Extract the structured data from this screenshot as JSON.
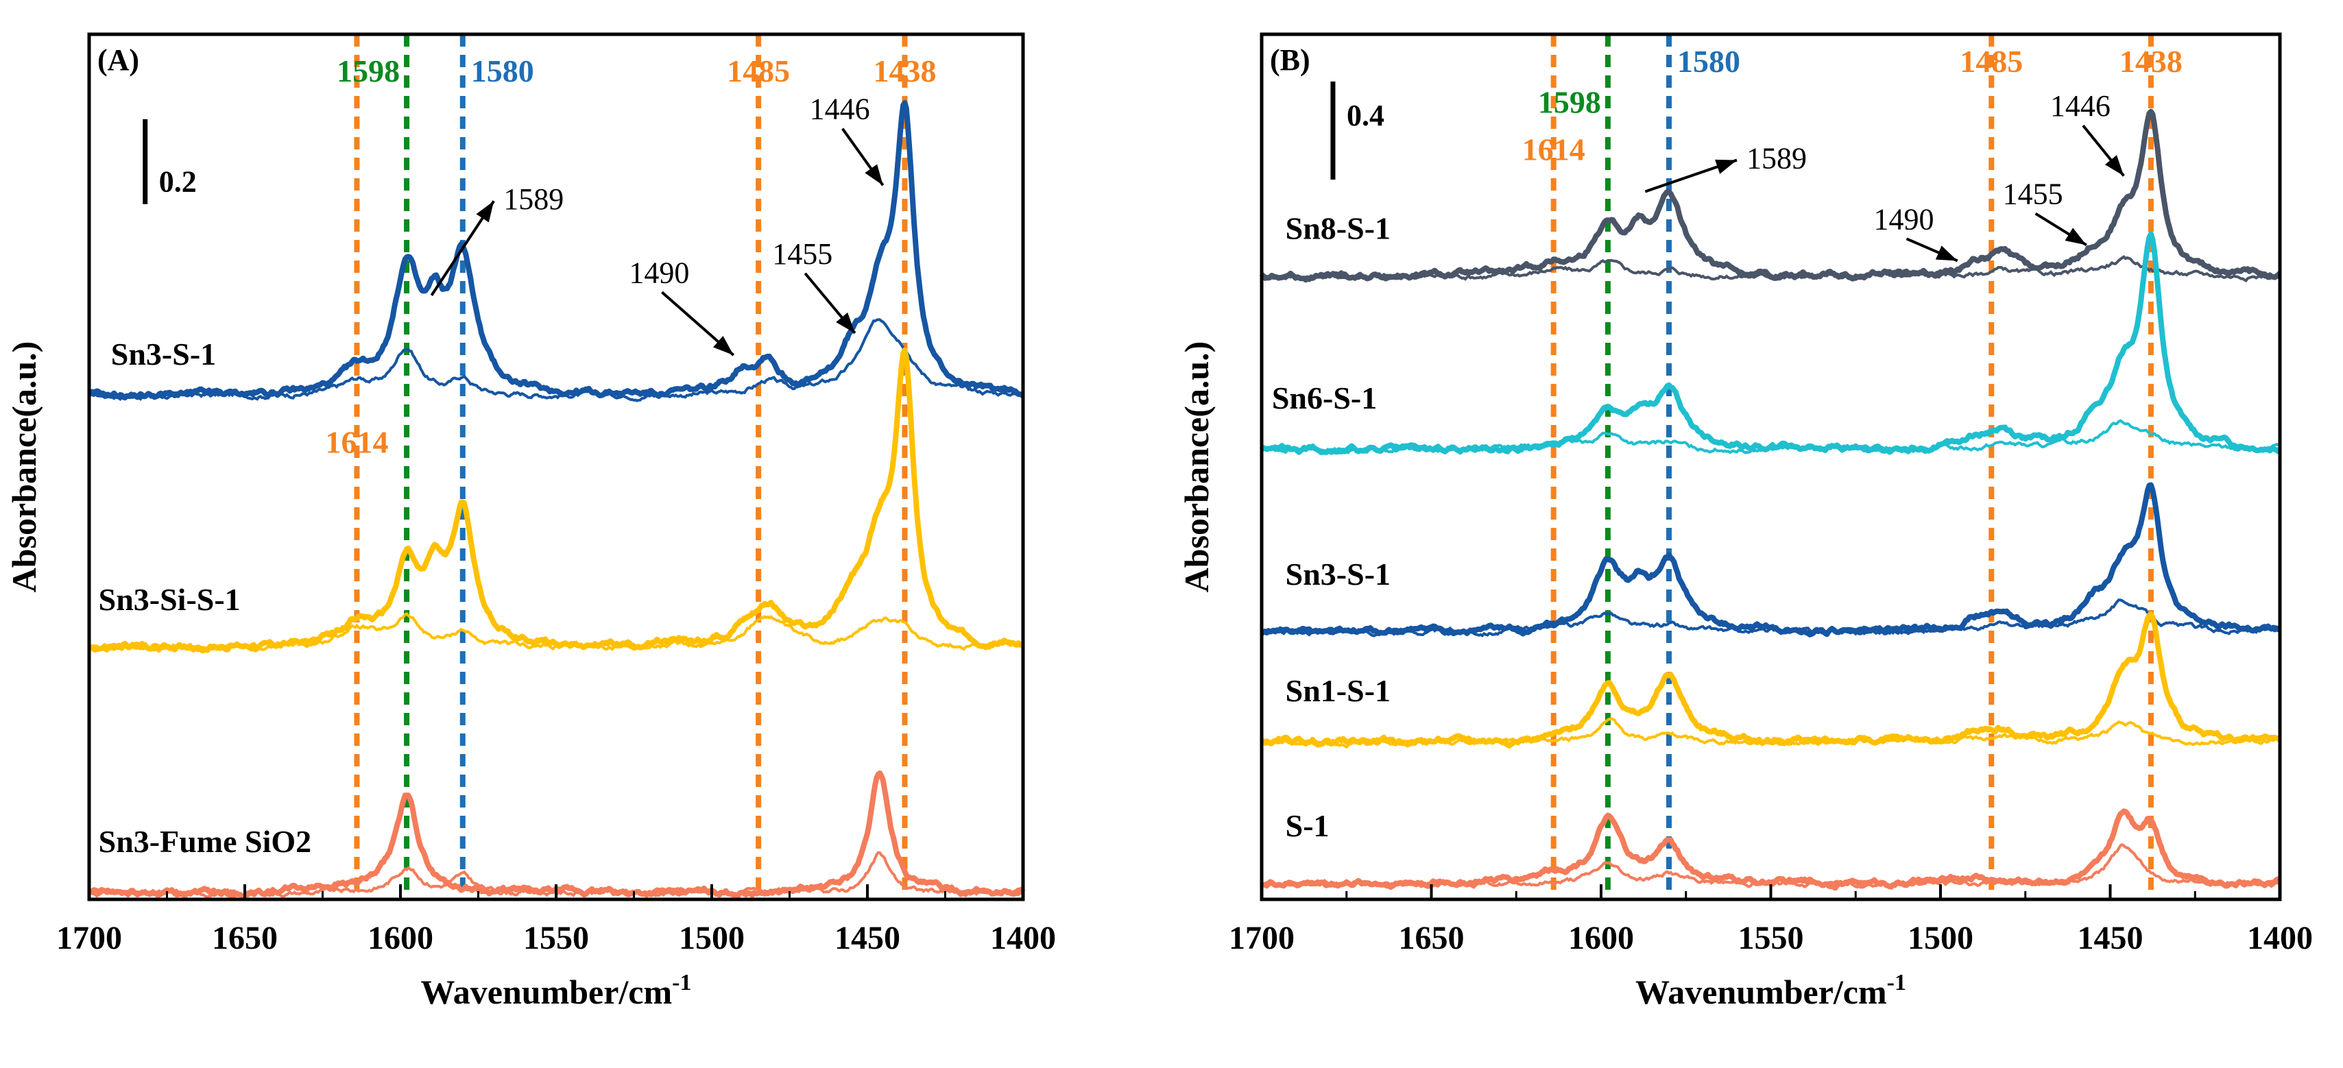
{
  "chart_data": [
    {
      "id": "A",
      "type": "line",
      "panel_label": "(A)",
      "xlabel": "Wavenumber/cm",
      "xlabel_sup": "-1",
      "ylabel": "Absorbance(a.u.)",
      "xlim": [
        1700,
        1400
      ],
      "x_ticks": [
        1700,
        1650,
        1600,
        1550,
        1500,
        1450,
        1400
      ],
      "y_offset_step": 0.8,
      "scale_bar": {
        "label": "0.2",
        "value": 0.2
      },
      "vlines": [
        {
          "x": 1614,
          "label": "1614",
          "color": "#f5821f",
          "label_y": 1.42
        },
        {
          "x": 1598,
          "label": "1598",
          "color": "#0a8a1f",
          "label_y": 2.6
        },
        {
          "x": 1580,
          "label": "1580",
          "color": "#1f6fb5",
          "label_y": 2.6
        },
        {
          "x": 1485,
          "label": "1485",
          "color": "#f5821f",
          "label_y": 2.6
        },
        {
          "x": 1438,
          "label": "1438",
          "color": "#f5821f",
          "label_y": 2.6
        }
      ],
      "annotations": [
        {
          "text": "1589",
          "x_from": 1590,
          "y_from": 1.92,
          "x_to": 1570,
          "y_to": 2.22
        },
        {
          "text": "1490",
          "x_from": 1493,
          "y_from": 1.73,
          "x_to": 1516,
          "y_to": 1.93
        },
        {
          "text": "1455",
          "x_from": 1454,
          "y_from": 1.8,
          "x_to": 1470,
          "y_to": 1.99
        },
        {
          "text": "1446",
          "x_from": 1445,
          "y_from": 2.27,
          "x_to": 1458,
          "y_to": 2.45
        }
      ],
      "series": [
        {
          "name": "Sn3-S-1",
          "label": "Sn3-S-1",
          "color": "#1656a3",
          "offset": 1.6,
          "label_x": 1693,
          "label_y": 1.7,
          "thick_peaks": [
            [
              1598,
              0.38,
              5
            ],
            [
              1589,
              0.18,
              3.5
            ],
            [
              1580,
              0.42,
              5
            ],
            [
              1490,
              0.07,
              5
            ],
            [
              1482,
              0.1,
              4
            ],
            [
              1455,
              0.1,
              5
            ],
            [
              1446,
              0.3,
              5
            ],
            [
              1438,
              0.85,
              3.5
            ],
            [
              1614,
              0.06,
              6
            ]
          ],
          "thin_peaks": [
            [
              1614,
              0.04,
              6
            ],
            [
              1598,
              0.15,
              5
            ],
            [
              1580,
              0.05,
              4
            ],
            [
              1482,
              0.04,
              5
            ],
            [
              1446,
              0.23,
              8
            ],
            [
              1438,
              0.05,
              4
            ]
          ]
        },
        {
          "name": "Sn3-Si-S-1",
          "label": "Sn3-Si-S-1",
          "color": "#ffc000",
          "offset": 0.8,
          "label_x": 1697,
          "label_y": 0.92,
          "thick_peaks": [
            [
              1598,
              0.25,
              4.5
            ],
            [
              1589,
              0.18,
              3.5
            ],
            [
              1580,
              0.42,
              4.5
            ],
            [
              1614,
              0.07,
              6
            ],
            [
              1482,
              0.12,
              6
            ],
            [
              1490,
              0.04,
              5
            ],
            [
              1455,
              0.12,
              6
            ],
            [
              1446,
              0.28,
              5
            ],
            [
              1438,
              0.85,
              3.5
            ]
          ],
          "thin_peaks": [
            [
              1614,
              0.06,
              7
            ],
            [
              1598,
              0.09,
              5
            ],
            [
              1580,
              0.05,
              4
            ],
            [
              1482,
              0.1,
              7
            ],
            [
              1446,
              0.08,
              7
            ],
            [
              1438,
              0.04,
              4
            ]
          ]
        },
        {
          "name": "Sn3-Fume SiO2",
          "label": "Sn3-Fume SiO2",
          "color": "#f47c5a",
          "offset": 0.02,
          "label_x": 1697,
          "label_y": 0.15,
          "thick_peaks": [
            [
              1598,
              0.3,
              4.5
            ],
            [
              1446,
              0.38,
              4
            ],
            [
              1620,
              0.02,
              12
            ]
          ],
          "thin_peaks": [
            [
              1598,
              0.08,
              5
            ],
            [
              1580,
              0.05,
              4
            ],
            [
              1446,
              0.12,
              4
            ]
          ]
        }
      ]
    },
    {
      "id": "B",
      "type": "line",
      "panel_label": "(B)",
      "xlabel": "Wavenumber/cm",
      "xlabel_sup": "-1",
      "ylabel": "Absorbance(a.u.)",
      "xlim": [
        1700,
        1400
      ],
      "x_ticks": [
        1700,
        1650,
        1600,
        1550,
        1500,
        1450,
        1400
      ],
      "scale_bar": {
        "label": "0.4",
        "value": 0.4
      },
      "vlines": [
        {
          "x": 1614,
          "label": "1614",
          "color": "#f5821f",
          "label_y": 2.35
        },
        {
          "x": 1598,
          "label": "1598",
          "color": "#0a8a1f",
          "label_y": 2.5
        },
        {
          "x": 1580,
          "label": "1580",
          "color": "#1f6fb5",
          "label_y": 2.63
        },
        {
          "x": 1485,
          "label": "1485",
          "color": "#f5821f",
          "label_y": 2.63
        },
        {
          "x": 1438,
          "label": "1438",
          "color": "#f5821f",
          "label_y": 2.63
        }
      ],
      "annotations": [
        {
          "text": "1589",
          "x_from": 1587,
          "y_from": 2.25,
          "x_to": 1560,
          "y_to": 2.35
        },
        {
          "text": "1490",
          "x_from": 1495,
          "y_from": 2.03,
          "x_to": 1510,
          "y_to": 2.1
        },
        {
          "text": "1455",
          "x_from": 1457,
          "y_from": 2.08,
          "x_to": 1472,
          "y_to": 2.18
        },
        {
          "text": "1446",
          "x_from": 1446,
          "y_from": 2.3,
          "x_to": 1458,
          "y_to": 2.46
        }
      ],
      "series": [
        {
          "name": "Sn8-S-1",
          "label": "Sn8-S-1",
          "color": "#4a5568",
          "offset": 1.98,
          "label_x": 1693,
          "label_y": 2.1,
          "thick_peaks": [
            [
              1598,
              0.15,
              5
            ],
            [
              1589,
              0.1,
              3.5
            ],
            [
              1580,
              0.24,
              5
            ],
            [
              1614,
              0.03,
              6
            ],
            [
              1490,
              0.03,
              5
            ],
            [
              1482,
              0.06,
              5
            ],
            [
              1455,
              0.05,
              5
            ],
            [
              1446,
              0.15,
              5
            ],
            [
              1438,
              0.48,
              3.5
            ]
          ],
          "thin_peaks": [
            [
              1614,
              0.02,
              6
            ],
            [
              1598,
              0.04,
              5
            ],
            [
              1580,
              0.02,
              4
            ],
            [
              1482,
              0.02,
              5
            ],
            [
              1446,
              0.05,
              8
            ]
          ]
        },
        {
          "name": "Sn6-S-1",
          "label": "Sn6-S-1",
          "color": "#1fbfcf",
          "offset": 1.43,
          "label_x": 1697,
          "label_y": 1.56,
          "thick_peaks": [
            [
              1598,
              0.11,
              5
            ],
            [
              1589,
              0.07,
              3.5
            ],
            [
              1580,
              0.18,
              5
            ],
            [
              1490,
              0.03,
              5
            ],
            [
              1482,
              0.05,
              5
            ],
            [
              1455,
              0.06,
              5
            ],
            [
              1446,
              0.2,
              5
            ],
            [
              1438,
              0.62,
              3.5
            ]
          ],
          "thin_peaks": [
            [
              1614,
              0.02,
              6
            ],
            [
              1598,
              0.05,
              5
            ],
            [
              1580,
              0.02,
              4
            ],
            [
              1482,
              0.02,
              5
            ],
            [
              1446,
              0.09,
              8
            ]
          ]
        },
        {
          "name": "Sn3-S-1",
          "label": "Sn3-S-1",
          "color": "#1656a3",
          "offset": 0.85,
          "label_x": 1693,
          "label_y": 1.0,
          "thick_peaks": [
            [
              1598,
              0.2,
              5
            ],
            [
              1589,
              0.09,
              3.5
            ],
            [
              1580,
              0.22,
              5
            ],
            [
              1490,
              0.03,
              5
            ],
            [
              1482,
              0.05,
              5
            ],
            [
              1455,
              0.06,
              5
            ],
            [
              1446,
              0.18,
              5
            ],
            [
              1438,
              0.42,
              3.5
            ]
          ],
          "thin_peaks": [
            [
              1614,
              0.02,
              6
            ],
            [
              1598,
              0.06,
              5
            ],
            [
              1580,
              0.02,
              4
            ],
            [
              1482,
              0.02,
              5
            ],
            [
              1446,
              0.1,
              8
            ]
          ]
        },
        {
          "name": "Sn1-S-1",
          "label": "Sn1-S-1",
          "color": "#ffc000",
          "offset": 0.5,
          "label_x": 1693,
          "label_y": 0.63,
          "thick_peaks": [
            [
              1598,
              0.18,
              5
            ],
            [
              1580,
              0.2,
              5
            ],
            [
              1490,
              0.02,
              5
            ],
            [
              1482,
              0.03,
              5
            ],
            [
              1446,
              0.2,
              5
            ],
            [
              1438,
              0.35,
              3.5
            ]
          ],
          "thin_peaks": [
            [
              1598,
              0.06,
              5
            ],
            [
              1580,
              0.02,
              4
            ],
            [
              1482,
              0.02,
              5
            ],
            [
              1446,
              0.06,
              6
            ]
          ]
        },
        {
          "name": "S-1",
          "label": "S-1",
          "color": "#f47c5a",
          "offset": 0.05,
          "label_x": 1693,
          "label_y": 0.2,
          "thick_peaks": [
            [
              1598,
              0.19,
              5
            ],
            [
              1580,
              0.12,
              4.5
            ],
            [
              1614,
              0.03,
              8
            ],
            [
              1446,
              0.2,
              4.5
            ],
            [
              1438,
              0.17,
              3.5
            ],
            [
              1490,
              0.02,
              5
            ]
          ],
          "thin_peaks": [
            [
              1598,
              0.06,
              5
            ],
            [
              1580,
              0.03,
              4
            ],
            [
              1446,
              0.12,
              5
            ]
          ]
        }
      ]
    }
  ]
}
